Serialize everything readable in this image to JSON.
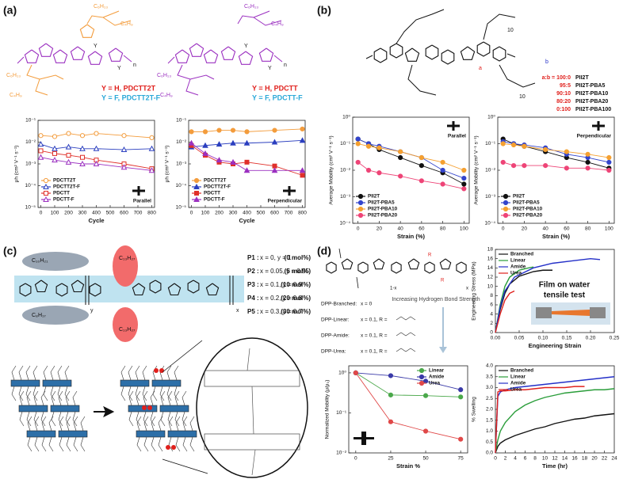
{
  "figure": {
    "panel_labels": [
      "(a)",
      "(b)",
      "(c)",
      "(d)"
    ],
    "a": {
      "chains": [
        "C₆H₁₃",
        "C₄H₉",
        "C₆H₁₃",
        "C₄H₉",
        "C₆H₁₃",
        "C₄H₉",
        "C₆H₁₃",
        "C₄H₉"
      ],
      "y_marks": [
        "Y",
        "Y",
        "Y",
        "Y"
      ],
      "names": [
        [
          "Y = H, PDCTT2T",
          "Y = F, PDCTT2T-F"
        ],
        [
          "Y = H, PDCTT",
          "Y = F, PDCTT-F"
        ]
      ],
      "repeat": [
        "n",
        "n"
      ]
    },
    "b": {
      "units": [
        "a",
        "b",
        "10",
        "10"
      ],
      "ratios": [
        [
          "a:b = 100:0",
          "PII2T"
        ],
        [
          "95:5",
          "PII2T-PBA5"
        ],
        [
          "90:10",
          "PII2T-PBA10"
        ],
        [
          "80:20",
          "PII2T-PBA20"
        ],
        [
          "0:100",
          "PII2T-PBA100"
        ]
      ]
    },
    "c": {
      "chains": [
        "C₁₀H₂₁",
        "C₈H₁₇",
        "C₁₃H₂₇",
        "C₁₃H₂₇"
      ],
      "units": [
        "y",
        "x"
      ],
      "rows": [
        [
          "P1 :",
          "x = 0, y = 1",
          "(0 mol%)"
        ],
        [
          "P2 :",
          "x = 0.05, y = 0.95",
          "(5 mol%)"
        ],
        [
          "P3 :",
          "x = 0.1, y = 0.9",
          "(10 mol%)"
        ],
        [
          "P4 :",
          "x = 0.2, y = 0.8",
          "(20 mol%)"
        ],
        [
          "P5 :",
          "x = 0.3, y = 0.7",
          "(30 mol%)"
        ]
      ]
    },
    "d": {
      "units": [
        "1-x",
        "x",
        "R",
        "R"
      ],
      "trend": "Increasing Hydrogen Bond Strength",
      "rows": [
        [
          "DPP-Branched:",
          "x = 0"
        ],
        [
          "DPP-Linear:",
          "x = 0.1, R ="
        ],
        [
          "DPP-Amide:",
          "x = 0.1, R ="
        ],
        [
          "DPP-Urea:",
          "x = 0.1, R ="
        ]
      ],
      "inset": [
        "Film on water",
        "tensile test"
      ]
    }
  },
  "chart_data": [
    {
      "type": "line",
      "y_label": "μh (cm² V⁻¹ s⁻¹)",
      "x_label": "Cycle",
      "log_y": true,
      "legend": "lower left",
      "annotation": "Parallel",
      "annotation_corner": "lower right",
      "x": [
        0,
        100,
        200,
        300,
        400,
        600,
        800
      ],
      "xlim": [
        -20,
        820
      ],
      "xticks": [
        0,
        100,
        200,
        300,
        400,
        500,
        600,
        700,
        800
      ],
      "ylim": [
        1e-05,
        0.1
      ],
      "yticks": [
        {
          "value": 1e-05,
          "label": "10⁻⁵"
        },
        {
          "value": 0.0001,
          "label": "10⁻⁴"
        },
        {
          "value": 0.001,
          "label": "10⁻³"
        },
        {
          "value": 0.01,
          "label": "10⁻²"
        },
        {
          "value": 0.1,
          "label": "10⁻¹"
        }
      ],
      "series": [
        {
          "name": "PDCTT2T",
          "color": "#f39c3c",
          "marker": "circle",
          "filled": false,
          "values": [
            0.02,
            0.018,
            0.025,
            0.02,
            0.025,
            0.02,
            0.016
          ]
        },
        {
          "name": "PDCTT2T-F",
          "color": "#2b3fbf",
          "marker": "triangle",
          "filled": false,
          "values": [
            0.008,
            0.005,
            0.006,
            0.005,
            0.005,
            0.0045,
            0.005
          ]
        },
        {
          "name": "PDCTT",
          "color": "#e0302a",
          "marker": "square",
          "filled": false,
          "values": [
            0.004,
            0.003,
            0.0025,
            0.002,
            0.0015,
            0.001,
            0.0006
          ]
        },
        {
          "name": "PDCTT-F",
          "color": "#9b30c0",
          "marker": "triangle",
          "filled": false,
          "values": [
            0.002,
            0.0015,
            0.0012,
            0.001,
            0.001,
            0.0007,
            0.0005
          ]
        }
      ]
    },
    {
      "type": "line",
      "y_label": "μh (cm² V⁻¹ s⁻¹)",
      "x_label": "Cycle",
      "log_y": true,
      "legend": "lower left",
      "annotation": "Perpendicular",
      "annotation_corner": "lower right",
      "x": [
        0,
        100,
        200,
        300,
        400,
        600,
        800
      ],
      "xlim": [
        -20,
        820
      ],
      "xticks": [
        0,
        100,
        200,
        300,
        400,
        500,
        600,
        700,
        800
      ],
      "ylim": [
        1e-05,
        0.1
      ],
      "yticks": [
        {
          "value": 1e-05,
          "label": "10⁻⁵"
        },
        {
          "value": 0.0001,
          "label": "10⁻⁴"
        },
        {
          "value": 0.001,
          "label": "10⁻³"
        },
        {
          "value": 0.01,
          "label": "10⁻²"
        },
        {
          "value": 0.1,
          "label": "10⁻¹"
        }
      ],
      "series": [
        {
          "name": "PDCTT2T",
          "color": "#f39c3c",
          "marker": "circle",
          "filled": true,
          "values": [
            0.03,
            0.03,
            0.035,
            0.035,
            0.03,
            0.035,
            0.04
          ]
        },
        {
          "name": "PDCTT2T-F",
          "color": "#2b3fbf",
          "marker": "triangle",
          "filled": true,
          "values": [
            0.006,
            0.007,
            0.008,
            0.009,
            0.009,
            0.01,
            0.012
          ]
        },
        {
          "name": "PDCTT",
          "color": "#e0302a",
          "marker": "square",
          "filled": true,
          "values": [
            0.007,
            0.0025,
            0.0012,
            0.001,
            0.0012,
            0.0008,
            0.0003
          ]
        },
        {
          "name": "PDCTT-F",
          "color": "#9b30c0",
          "marker": "triangle",
          "filled": true,
          "values": [
            0.009,
            0.003,
            0.0015,
            0.0012,
            0.0005,
            0.0005,
            0.0005
          ]
        }
      ]
    },
    {
      "type": "line",
      "y_label": "Average Mobility (cm² V⁻¹ s⁻¹)",
      "x_label": "Strain (%)",
      "log_y": true,
      "legend": "lower left",
      "annotation": "Parallel",
      "annotation_corner": "upper right",
      "x": [
        0,
        10,
        20,
        40,
        60,
        80,
        100
      ],
      "xlim": [
        -5,
        105
      ],
      "xticks": [
        0,
        20,
        40,
        60,
        80,
        100
      ],
      "ylim": [
        0.0001,
        1
      ],
      "yticks": [
        {
          "value": 0.0001,
          "label": "10⁻⁴"
        },
        {
          "value": 0.001,
          "label": "10⁻³"
        },
        {
          "value": 0.01,
          "label": "10⁻²"
        },
        {
          "value": 0.1,
          "label": "10⁻¹"
        },
        {
          "value": 1,
          "label": "10⁰"
        }
      ],
      "series": [
        {
          "name": "PII2T",
          "color": "#111111",
          "marker": "circle",
          "filled": true,
          "values": [
            0.15,
            0.1,
            0.06,
            0.03,
            0.015,
            0.008,
            0.003
          ]
        },
        {
          "name": "PII2T-PBA5",
          "color": "#3344cc",
          "marker": "circle",
          "filled": true,
          "values": [
            0.15,
            0.1,
            0.08,
            0.05,
            0.03,
            0.01,
            0.005
          ]
        },
        {
          "name": "PII2T-PBA10",
          "color": "#f5a030",
          "marker": "circle",
          "filled": true,
          "values": [
            0.1,
            0.08,
            0.07,
            0.05,
            0.03,
            0.02,
            0.01
          ]
        },
        {
          "name": "PII2T-PBA20",
          "color": "#ee4477",
          "marker": "circle",
          "filled": true,
          "values": [
            0.02,
            0.01,
            0.008,
            0.006,
            0.004,
            0.003,
            0.002
          ]
        }
      ]
    },
    {
      "type": "line",
      "y_label": "Average Mobility (cm² V⁻¹ s⁻¹)",
      "x_label": "Strain (%)",
      "log_y": true,
      "legend": "lower left",
      "annotation": "Perpendicular",
      "annotation_corner": "upper right",
      "x": [
        0,
        10,
        20,
        40,
        60,
        80,
        100
      ],
      "xlim": [
        -5,
        105
      ],
      "xticks": [
        0,
        20,
        40,
        60,
        80,
        100
      ],
      "ylim": [
        0.0001,
        1
      ],
      "yticks": [
        {
          "value": 0.0001,
          "label": "10⁻⁴"
        },
        {
          "value": 0.001,
          "label": "10⁻³"
        },
        {
          "value": 0.01,
          "label": "10⁻²"
        },
        {
          "value": 0.1,
          "label": "10⁻¹"
        },
        {
          "value": 1,
          "label": "10⁰"
        }
      ],
      "series": [
        {
          "name": "PII2T",
          "color": "#111111",
          "marker": "circle",
          "filled": true,
          "values": [
            0.15,
            0.1,
            0.08,
            0.05,
            0.03,
            0.02,
            0.012
          ]
        },
        {
          "name": "PII2T-PBA5",
          "color": "#3344cc",
          "marker": "circle",
          "filled": true,
          "values": [
            0.12,
            0.1,
            0.09,
            0.07,
            0.04,
            0.03,
            0.02
          ]
        },
        {
          "name": "PII2T-PBA10",
          "color": "#f5a030",
          "marker": "circle",
          "filled": true,
          "values": [
            0.1,
            0.09,
            0.08,
            0.06,
            0.05,
            0.04,
            0.03
          ]
        },
        {
          "name": "PII2T-PBA20",
          "color": "#ee4477",
          "marker": "circle",
          "filled": true,
          "values": [
            0.02,
            0.015,
            0.015,
            0.015,
            0.012,
            0.012,
            0.01
          ]
        }
      ]
    },
    {
      "type": "line",
      "y_label": "Engineering Stress (MPa)",
      "x_label": "Engineering Strain",
      "log_y": false,
      "legend": "upper left",
      "xlim": [
        0,
        0.25
      ],
      "xticks": [
        {
          "value": 0,
          "label": "0.00"
        },
        0.05,
        {
          "value": 0.1,
          "label": "0.10"
        },
        0.15,
        {
          "value": 0.2,
          "label": "0.20"
        },
        0.25
      ],
      "ylim": [
        0,
        18
      ],
      "yticks": [
        0,
        2,
        4,
        6,
        8,
        10,
        12,
        14,
        16,
        18
      ],
      "series": [
        {
          "name": "Branched",
          "color": "#111111",
          "x": [
            0,
            0.01,
            0.02,
            0.03,
            0.05,
            0.08,
            0.1,
            0.12
          ],
          "values": [
            0,
            5,
            8.5,
            10.5,
            12.2,
            13.2,
            13.5,
            13.5
          ]
        },
        {
          "name": "Linear",
          "color": "#2a9d3a",
          "x": [
            0,
            0.01,
            0.02,
            0.03,
            0.05,
            0.07,
            0.08
          ],
          "values": [
            0,
            6,
            10,
            12,
            13.5,
            14,
            14.2
          ]
        },
        {
          "name": "Amide",
          "color": "#2430c8",
          "x": [
            0,
            0.01,
            0.02,
            0.04,
            0.08,
            0.12,
            0.16,
            0.2,
            0.22
          ],
          "values": [
            0,
            5.5,
            9,
            12,
            14,
            15,
            15.5,
            16,
            15.8
          ]
        },
        {
          "name": "Urea",
          "color": "#e0201c",
          "x": [
            0,
            0.01,
            0.02,
            0.03,
            0.04
          ],
          "values": [
            0,
            4,
            7,
            8.5,
            9
          ]
        }
      ]
    },
    {
      "type": "line",
      "y_label": "Normalized Mobility (μ/μ₀)",
      "x_label": "Strain %",
      "log_y": true,
      "legend": "upper right",
      "x": [
        0,
        25,
        50,
        75
      ],
      "xlim": [
        -5,
        80
      ],
      "xticks": [
        0,
        25,
        50,
        75
      ],
      "ylim": [
        0.01,
        1.5
      ],
      "yticks": [
        {
          "value": 0.01,
          "label": "10⁻²"
        },
        {
          "value": 0.1,
          "label": "10⁻¹"
        },
        {
          "value": 1,
          "label": "10⁰"
        }
      ],
      "series": [
        {
          "name": "Linear",
          "color": "#4aa84a",
          "marker": "circle",
          "filled": true,
          "values": [
            1,
            0.28,
            0.27,
            0.25
          ]
        },
        {
          "name": "Amide",
          "color": "#3a3aa8",
          "marker": "circle",
          "filled": true,
          "values": [
            1,
            0.85,
            0.62,
            0.38
          ]
        },
        {
          "name": "Urea",
          "color": "#e04848",
          "marker": "circle",
          "filled": true,
          "values": [
            1,
            0.06,
            0.035,
            0.022
          ]
        }
      ]
    },
    {
      "type": "line",
      "y_label": "% Swelling",
      "x_label": "Time (hr)",
      "log_y": false,
      "legend": "upper left",
      "xlim": [
        0,
        24
      ],
      "xticks": [
        0,
        2,
        4,
        6,
        8,
        10,
        12,
        14,
        16,
        18,
        20,
        22,
        24
      ],
      "ylim": [
        0,
        4
      ],
      "yticks": [
        {
          "value": 0,
          "label": "0.0"
        },
        0.5,
        {
          "value": 1,
          "label": "1.0"
        },
        1.5,
        {
          "value": 2,
          "label": "2.0"
        },
        2.5,
        {
          "value": 3,
          "label": "3.0"
        },
        3.5,
        {
          "value": 4,
          "label": "4.0"
        }
      ],
      "series": [
        {
          "name": "Branched",
          "color": "#111111",
          "x": [
            0,
            0.5,
            1,
            2,
            4,
            6,
            8,
            10,
            12,
            14,
            16,
            18,
            20,
            22,
            24
          ],
          "values": [
            0,
            0.3,
            0.45,
            0.6,
            0.8,
            0.95,
            1.1,
            1.2,
            1.35,
            1.45,
            1.55,
            1.6,
            1.7,
            1.75,
            1.8
          ]
        },
        {
          "name": "Linear",
          "color": "#2a9d3a",
          "x": [
            0,
            0.5,
            1,
            2,
            4,
            6,
            8,
            10,
            12,
            14,
            16,
            18,
            20,
            22,
            24
          ],
          "values": [
            0,
            0.6,
            1,
            1.4,
            1.9,
            2.2,
            2.4,
            2.55,
            2.65,
            2.75,
            2.8,
            2.85,
            2.9,
            2.9,
            2.95
          ]
        },
        {
          "name": "Amide",
          "color": "#2430c8",
          "x": [
            0,
            0.5,
            1,
            2,
            4,
            6,
            8,
            10,
            12,
            14,
            16,
            18,
            20,
            22,
            24
          ],
          "values": [
            0,
            2.6,
            2.8,
            2.9,
            3,
            3.05,
            3.1,
            3.15,
            3.2,
            3.25,
            3.3,
            3.35,
            3.4,
            3.45,
            3.5
          ]
        },
        {
          "name": "Urea",
          "color": "#e0201c",
          "x": [
            0,
            0.5,
            1,
            2,
            4,
            6,
            8,
            10,
            12,
            14,
            16,
            18
          ],
          "values": [
            0,
            2.8,
            2.85,
            2.85,
            2.9,
            2.9,
            2.95,
            3,
            3,
            3,
            3.05,
            3.05
          ]
        }
      ]
    }
  ]
}
